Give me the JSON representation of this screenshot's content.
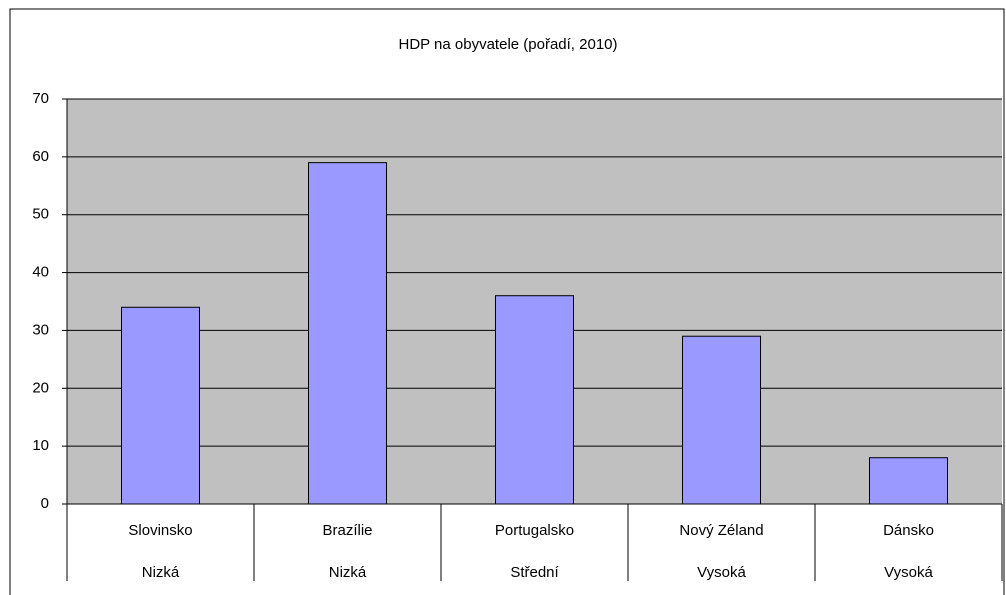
{
  "chart_data": {
    "type": "bar",
    "title": "HDP na obyvatele (pořadí, 2010)",
    "categories": [
      "Slovinsko",
      "Brazílie",
      "Portugalsko",
      "Nový Zéland",
      "Dánsko"
    ],
    "category_groups": [
      "Nizká",
      "Nizká",
      "Střední",
      "Vysoká",
      "Vysoká"
    ],
    "values": [
      34,
      59,
      36,
      29,
      8
    ],
    "color": "#9999ff",
    "plot_background": "#c0c0c0",
    "ylim": [
      0,
      70
    ],
    "yticks": [
      0,
      10,
      20,
      30,
      40,
      50,
      60,
      70
    ],
    "grid": true
  }
}
